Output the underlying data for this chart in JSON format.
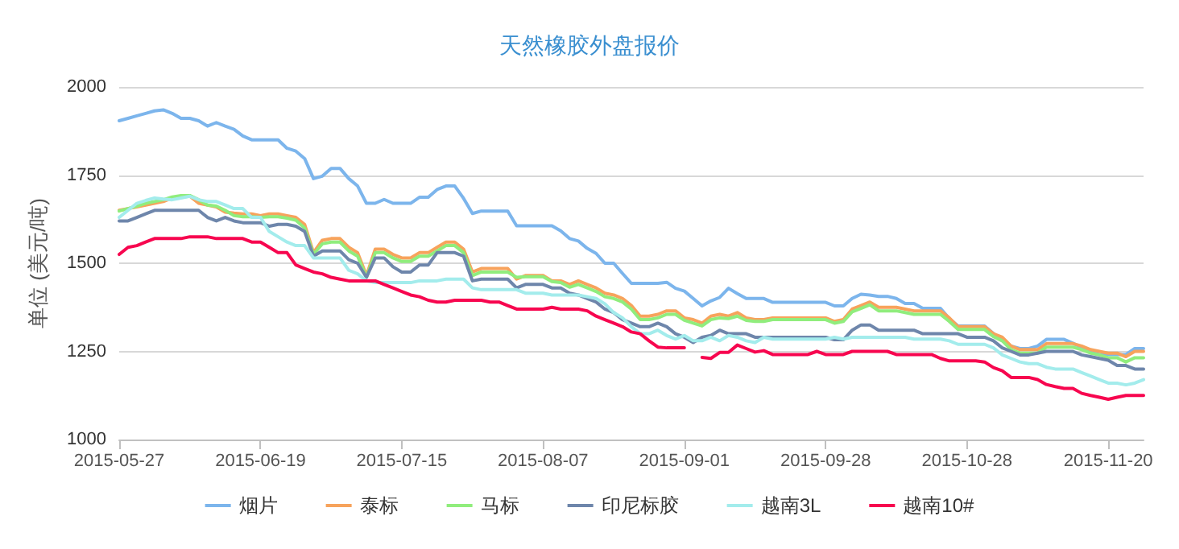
{
  "chart_data": {
    "type": "line",
    "title": "天然橡胶外盘报价",
    "ylabel": "单位 (美元/吨)",
    "categories": [
      "2015-05-27",
      null,
      null,
      null,
      null,
      null,
      null,
      null,
      null,
      null,
      null,
      null,
      null,
      null,
      null,
      null,
      "2015-06-19",
      null,
      null,
      null,
      null,
      null,
      null,
      null,
      null,
      null,
      null,
      null,
      null,
      null,
      null,
      null,
      "2015-07-15",
      null,
      null,
      null,
      null,
      null,
      null,
      null,
      null,
      null,
      null,
      null,
      null,
      null,
      null,
      null,
      "2015-08-07",
      null,
      null,
      null,
      null,
      null,
      null,
      null,
      null,
      null,
      null,
      null,
      null,
      null,
      null,
      null,
      "2015-09-01",
      null,
      null,
      null,
      null,
      null,
      null,
      null,
      null,
      null,
      null,
      null,
      null,
      null,
      null,
      null,
      "2015-09-28",
      null,
      null,
      null,
      null,
      null,
      null,
      null,
      null,
      null,
      null,
      null,
      null,
      null,
      null,
      null,
      "2015-10-28",
      null,
      null,
      null,
      null,
      null,
      null,
      null,
      null,
      null,
      null,
      null,
      null,
      null,
      null,
      null,
      "2015-11-20",
      null,
      null,
      null,
      null
    ],
    "series": [
      {
        "name": "烟片",
        "color": "#7cb5ec",
        "values": [
          1904,
          1911,
          1918,
          1925,
          1932,
          1935,
          1925,
          1911,
          1911,
          1904,
          1889,
          1899,
          1889,
          1880,
          1861,
          1850,
          1850,
          1850,
          1850,
          1826,
          1818,
          1797,
          1740,
          1747,
          1769,
          1769,
          1740,
          1719,
          1670,
          1670,
          1681,
          1670,
          1670,
          1670,
          1687,
          1687,
          1709,
          1719,
          1719,
          1684,
          1641,
          1648,
          1648,
          1648,
          1648,
          1606,
          1606,
          1606,
          1606,
          1606,
          1592,
          1570,
          1563,
          1542,
          1528,
          1500,
          1500,
          1471,
          1443,
          1443,
          1443,
          1443,
          1446,
          1429,
          1421,
          1400,
          1379,
          1393,
          1403,
          1429,
          1414,
          1400,
          1400,
          1400,
          1389,
          1389,
          1389,
          1389,
          1389,
          1389,
          1389,
          1379,
          1379,
          1400,
          1412,
          1410,
          1406,
          1406,
          1400,
          1386,
          1386,
          1372,
          1372,
          1372,
          1343,
          1322,
          1322,
          1322,
          1322,
          1301,
          1280,
          1265,
          1258,
          1258,
          1265,
          1284,
          1284,
          1284,
          1273,
          1261,
          1247,
          1241,
          1241,
          1241,
          1241,
          1258,
          1258
        ]
      },
      {
        "name": "泰标",
        "color": "#f7a35c",
        "values": [
          1650,
          1655,
          1660,
          1665,
          1670,
          1675,
          1685,
          1688,
          1690,
          1670,
          1665,
          1660,
          1645,
          1642,
          1640,
          1640,
          1635,
          1640,
          1640,
          1635,
          1630,
          1610,
          1530,
          1565,
          1570,
          1570,
          1545,
          1530,
          1465,
          1540,
          1540,
          1525,
          1515,
          1515,
          1530,
          1530,
          1545,
          1560,
          1560,
          1540,
          1475,
          1485,
          1485,
          1485,
          1485,
          1455,
          1465,
          1465,
          1465,
          1450,
          1450,
          1440,
          1450,
          1440,
          1430,
          1415,
          1410,
          1400,
          1380,
          1350,
          1350,
          1355,
          1365,
          1365,
          1345,
          1340,
          1330,
          1350,
          1355,
          1350,
          1360,
          1345,
          1340,
          1340,
          1345,
          1345,
          1345,
          1345,
          1345,
          1345,
          1345,
          1335,
          1340,
          1370,
          1380,
          1390,
          1375,
          1375,
          1375,
          1370,
          1365,
          1365,
          1365,
          1365,
          1345,
          1320,
          1320,
          1320,
          1320,
          1300,
          1290,
          1265,
          1255,
          1255,
          1255,
          1272,
          1272,
          1272,
          1272,
          1265,
          1255,
          1250,
          1245,
          1245,
          1235,
          1250,
          1250
        ]
      },
      {
        "name": "马标",
        "color": "#90ed7d",
        "values": [
          1648,
          1655,
          1662,
          1670,
          1675,
          1680,
          1688,
          1692,
          1692,
          1680,
          1665,
          1662,
          1650,
          1635,
          1632,
          1632,
          1630,
          1632,
          1632,
          1628,
          1622,
          1600,
          1525,
          1555,
          1560,
          1560,
          1535,
          1520,
          1460,
          1530,
          1530,
          1515,
          1505,
          1505,
          1520,
          1520,
          1535,
          1550,
          1550,
          1530,
          1465,
          1475,
          1475,
          1475,
          1475,
          1460,
          1462,
          1462,
          1462,
          1448,
          1445,
          1432,
          1440,
          1430,
          1420,
          1405,
          1400,
          1390,
          1370,
          1340,
          1340,
          1345,
          1355,
          1355,
          1338,
          1330,
          1322,
          1340,
          1345,
          1343,
          1350,
          1338,
          1335,
          1335,
          1340,
          1340,
          1340,
          1340,
          1340,
          1340,
          1340,
          1330,
          1335,
          1362,
          1372,
          1382,
          1365,
          1365,
          1365,
          1360,
          1355,
          1355,
          1355,
          1355,
          1335,
          1312,
          1312,
          1312,
          1312,
          1292,
          1280,
          1255,
          1245,
          1245,
          1245,
          1262,
          1262,
          1262,
          1262,
          1255,
          1245,
          1240,
          1232,
          1232,
          1220,
          1232,
          1232
        ]
      },
      {
        "name": "印尼标胶",
        "color": "#6e86ab",
        "values": [
          1620,
          1620,
          1630,
          1640,
          1650,
          1650,
          1650,
          1650,
          1650,
          1650,
          1630,
          1620,
          1630,
          1620,
          1615,
          1615,
          1615,
          1605,
          1610,
          1610,
          1605,
          1590,
          1520,
          1535,
          1535,
          1535,
          1510,
          1500,
          1460,
          1515,
          1515,
          1490,
          1475,
          1475,
          1495,
          1495,
          1530,
          1530,
          1530,
          1520,
          1450,
          1455,
          1455,
          1455,
          1455,
          1430,
          1440,
          1440,
          1440,
          1430,
          1430,
          1415,
          1410,
          1400,
          1390,
          1370,
          1360,
          1340,
          1330,
          1320,
          1320,
          1330,
          1320,
          1300,
          1290,
          1275,
          1290,
          1295,
          1310,
          1300,
          1300,
          1300,
          1290,
          1290,
          1290,
          1290,
          1290,
          1290,
          1290,
          1290,
          1290,
          1283,
          1283,
          1310,
          1325,
          1325,
          1310,
          1310,
          1310,
          1310,
          1310,
          1300,
          1300,
          1300,
          1300,
          1300,
          1290,
          1290,
          1290,
          1280,
          1260,
          1250,
          1240,
          1240,
          1245,
          1250,
          1250,
          1250,
          1250,
          1240,
          1235,
          1230,
          1225,
          1210,
          1210,
          1200,
          1200
        ]
      },
      {
        "name": "越南3L",
        "color": "#a3ecec",
        "values": [
          1630,
          1650,
          1670,
          1678,
          1685,
          1682,
          1680,
          1685,
          1690,
          1680,
          1675,
          1675,
          1665,
          1655,
          1655,
          1630,
          1630,
          1590,
          1575,
          1560,
          1550,
          1550,
          1515,
          1515,
          1515,
          1515,
          1480,
          1470,
          1450,
          1445,
          1445,
          1445,
          1445,
          1445,
          1450,
          1450,
          1450,
          1455,
          1455,
          1455,
          1430,
          1425,
          1425,
          1425,
          1425,
          1425,
          1415,
          1415,
          1415,
          1410,
          1410,
          1410,
          1410,
          1405,
          1400,
          1385,
          1360,
          1345,
          1320,
          1300,
          1300,
          1310,
          1295,
          1285,
          1295,
          1280,
          1280,
          1290,
          1280,
          1295,
          1290,
          1280,
          1275,
          1290,
          1285,
          1285,
          1285,
          1285,
          1285,
          1285,
          1285,
          1290,
          1285,
          1290,
          1290,
          1290,
          1290,
          1290,
          1290,
          1290,
          1285,
          1285,
          1285,
          1285,
          1280,
          1270,
          1270,
          1270,
          1270,
          1260,
          1240,
          1230,
          1220,
          1215,
          1215,
          1205,
          1200,
          1200,
          1200,
          1190,
          1180,
          1170,
          1160,
          1160,
          1155,
          1160,
          1170
        ]
      },
      {
        "name": "越南10#",
        "color": "#f7064f",
        "values": [
          1525,
          1545,
          1550,
          1560,
          1570,
          1570,
          1570,
          1570,
          1575,
          1575,
          1575,
          1570,
          1570,
          1570,
          1570,
          1560,
          1560,
          1545,
          1530,
          1530,
          1495,
          1485,
          1475,
          1470,
          1460,
          1455,
          1450,
          1450,
          1450,
          1450,
          1440,
          1430,
          1420,
          1410,
          1405,
          1395,
          1390,
          1390,
          1395,
          1395,
          1395,
          1395,
          1390,
          1390,
          1380,
          1370,
          1370,
          1370,
          1370,
          1375,
          1370,
          1370,
          1370,
          1365,
          1350,
          1340,
          1330,
          1320,
          1305,
          1300,
          1280,
          1262,
          1260,
          1260,
          1260,
          null,
          1233,
          1230,
          1247,
          1247,
          1268,
          1258,
          1248,
          1252,
          1241,
          1241,
          1241,
          1241,
          1241,
          1250,
          1241,
          1241,
          1241,
          1250,
          1250,
          1250,
          1250,
          1250,
          1241,
          1241,
          1241,
          1241,
          1241,
          1230,
          1223,
          1223,
          1223,
          1223,
          1220,
          1204,
          1195,
          1176,
          1176,
          1176,
          1170,
          1156,
          1150,
          1145,
          1145,
          1131,
          1125,
          1120,
          1114,
          1120,
          1125,
          1125,
          1125
        ]
      }
    ],
    "ylim": [
      1000,
      2000
    ],
    "yticks": [
      1000,
      1250,
      1500,
      1750,
      2000
    ],
    "grid": "y",
    "legend": "bottom",
    "marker": "none",
    "line_style": "solid"
  }
}
